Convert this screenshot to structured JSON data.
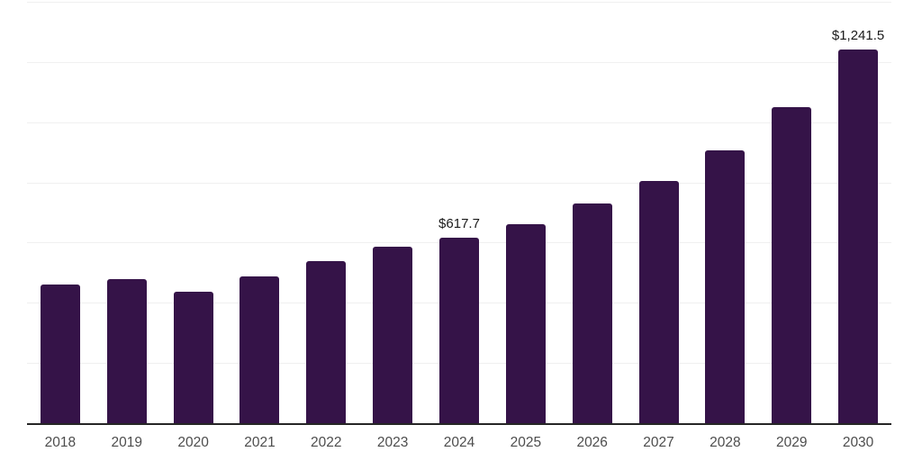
{
  "chart_data": {
    "type": "bar",
    "title": "",
    "xlabel": "",
    "ylabel": "",
    "categories": [
      "2018",
      "2019",
      "2020",
      "2021",
      "2022",
      "2023",
      "2024",
      "2025",
      "2026",
      "2027",
      "2028",
      "2029",
      "2030"
    ],
    "values": [
      460,
      480,
      436,
      487,
      539,
      586,
      617.7,
      662,
      729,
      806,
      906,
      1050,
      1241.5
    ],
    "data_labels": {
      "2024": "$617.7",
      "2030": "$1,241.5"
    },
    "ylim": [
      0,
      1400
    ],
    "grid_step": 200,
    "grid": "horizontal-only",
    "legend": "none",
    "colors": {
      "bar": "#351348",
      "gridline": "#f0f0f0",
      "axis_line": "#262626",
      "tick_label": "#4d4d4d",
      "data_label": "#1a1a1a"
    }
  }
}
